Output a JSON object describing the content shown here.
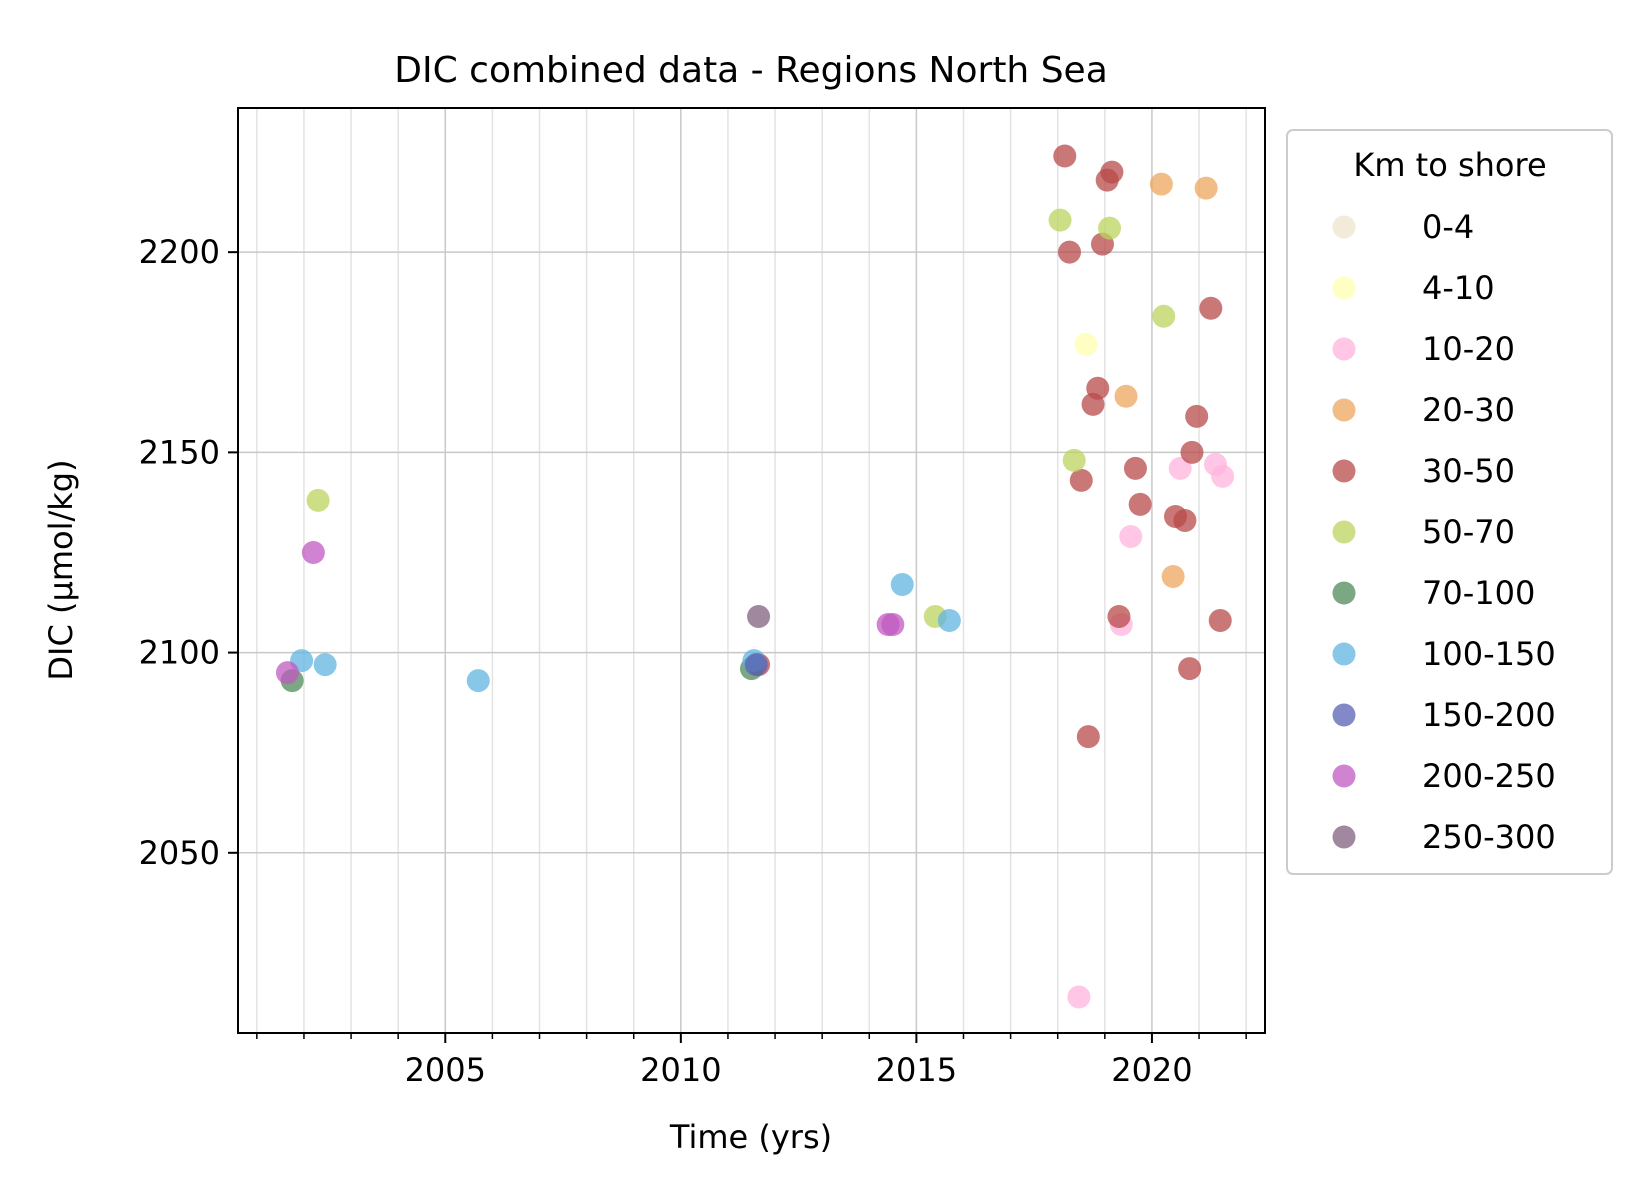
{
  "chart_data": {
    "type": "scatter",
    "title": "DIC combined data - Regions North Sea",
    "xlabel": "Time (yrs)",
    "ylabel": "DIC (µmol/kg)",
    "xlim": [
      2000.6,
      2022.4
    ],
    "ylim": [
      2005,
      2236
    ],
    "xticks": [
      2005,
      2010,
      2015,
      2020
    ],
    "yticks": [
      2050,
      2100,
      2150,
      2200
    ],
    "grid": true,
    "legend": {
      "title": "Km to shore",
      "position": "outside-right"
    },
    "series": [
      {
        "name": "0-4",
        "color": "#eee4cc",
        "points": []
      },
      {
        "name": "4-10",
        "color": "#ffffb0",
        "points": [
          [
            2018.6,
            2177
          ]
        ]
      },
      {
        "name": "10-20",
        "color": "#ffb3dc",
        "points": [
          [
            2018.45,
            2014
          ],
          [
            2019.35,
            2107
          ],
          [
            2019.55,
            2129
          ],
          [
            2020.6,
            2146
          ],
          [
            2021.35,
            2147
          ],
          [
            2021.5,
            2144
          ]
        ]
      },
      {
        "name": "20-30",
        "color": "#eda55e",
        "points": [
          [
            2019.45,
            2164
          ],
          [
            2020.2,
            2217
          ],
          [
            2020.45,
            2119
          ],
          [
            2021.15,
            2216
          ]
        ]
      },
      {
        "name": "30-50",
        "color": "#b84a4a",
        "points": [
          [
            2018.15,
            2224
          ],
          [
            2018.25,
            2200
          ],
          [
            2018.5,
            2143
          ],
          [
            2018.65,
            2079
          ],
          [
            2018.75,
            2162
          ],
          [
            2018.85,
            2166
          ],
          [
            2018.95,
            2202
          ],
          [
            2019.05,
            2218
          ],
          [
            2019.15,
            2220
          ],
          [
            2019.3,
            2109
          ],
          [
            2019.65,
            2146
          ],
          [
            2019.75,
            2137
          ],
          [
            2020.5,
            2134
          ],
          [
            2020.7,
            2133
          ],
          [
            2020.8,
            2096
          ],
          [
            2020.85,
            2150
          ],
          [
            2020.95,
            2159
          ],
          [
            2021.25,
            2186
          ],
          [
            2021.45,
            2108
          ],
          [
            2011.65,
            2097
          ]
        ]
      },
      {
        "name": "50-70",
        "color": "#bcd45e",
        "points": [
          [
            2002.3,
            2138
          ],
          [
            2015.4,
            2109
          ],
          [
            2018.05,
            2208
          ],
          [
            2018.35,
            2148
          ],
          [
            2019.1,
            2206
          ],
          [
            2020.25,
            2184
          ]
        ]
      },
      {
        "name": "70-100",
        "color": "#4f8a5a",
        "points": [
          [
            2001.75,
            2093
          ],
          [
            2011.5,
            2096
          ]
        ]
      },
      {
        "name": "100-150",
        "color": "#60b4e0",
        "points": [
          [
            2001.95,
            2098
          ],
          [
            2002.45,
            2097
          ],
          [
            2005.7,
            2093
          ],
          [
            2011.55,
            2098
          ],
          [
            2014.7,
            2117
          ],
          [
            2015.7,
            2108
          ]
        ]
      },
      {
        "name": "150-200",
        "color": "#5a62b4",
        "points": [
          [
            2011.6,
            2097
          ]
        ]
      },
      {
        "name": "200-250",
        "color": "#c05ac0",
        "points": [
          [
            2001.65,
            2095
          ],
          [
            2002.2,
            2125
          ],
          [
            2014.4,
            2107
          ],
          [
            2014.5,
            2107
          ]
        ]
      },
      {
        "name": "250-300",
        "color": "#80607f",
        "points": [
          [
            2011.65,
            2109
          ]
        ]
      }
    ]
  }
}
